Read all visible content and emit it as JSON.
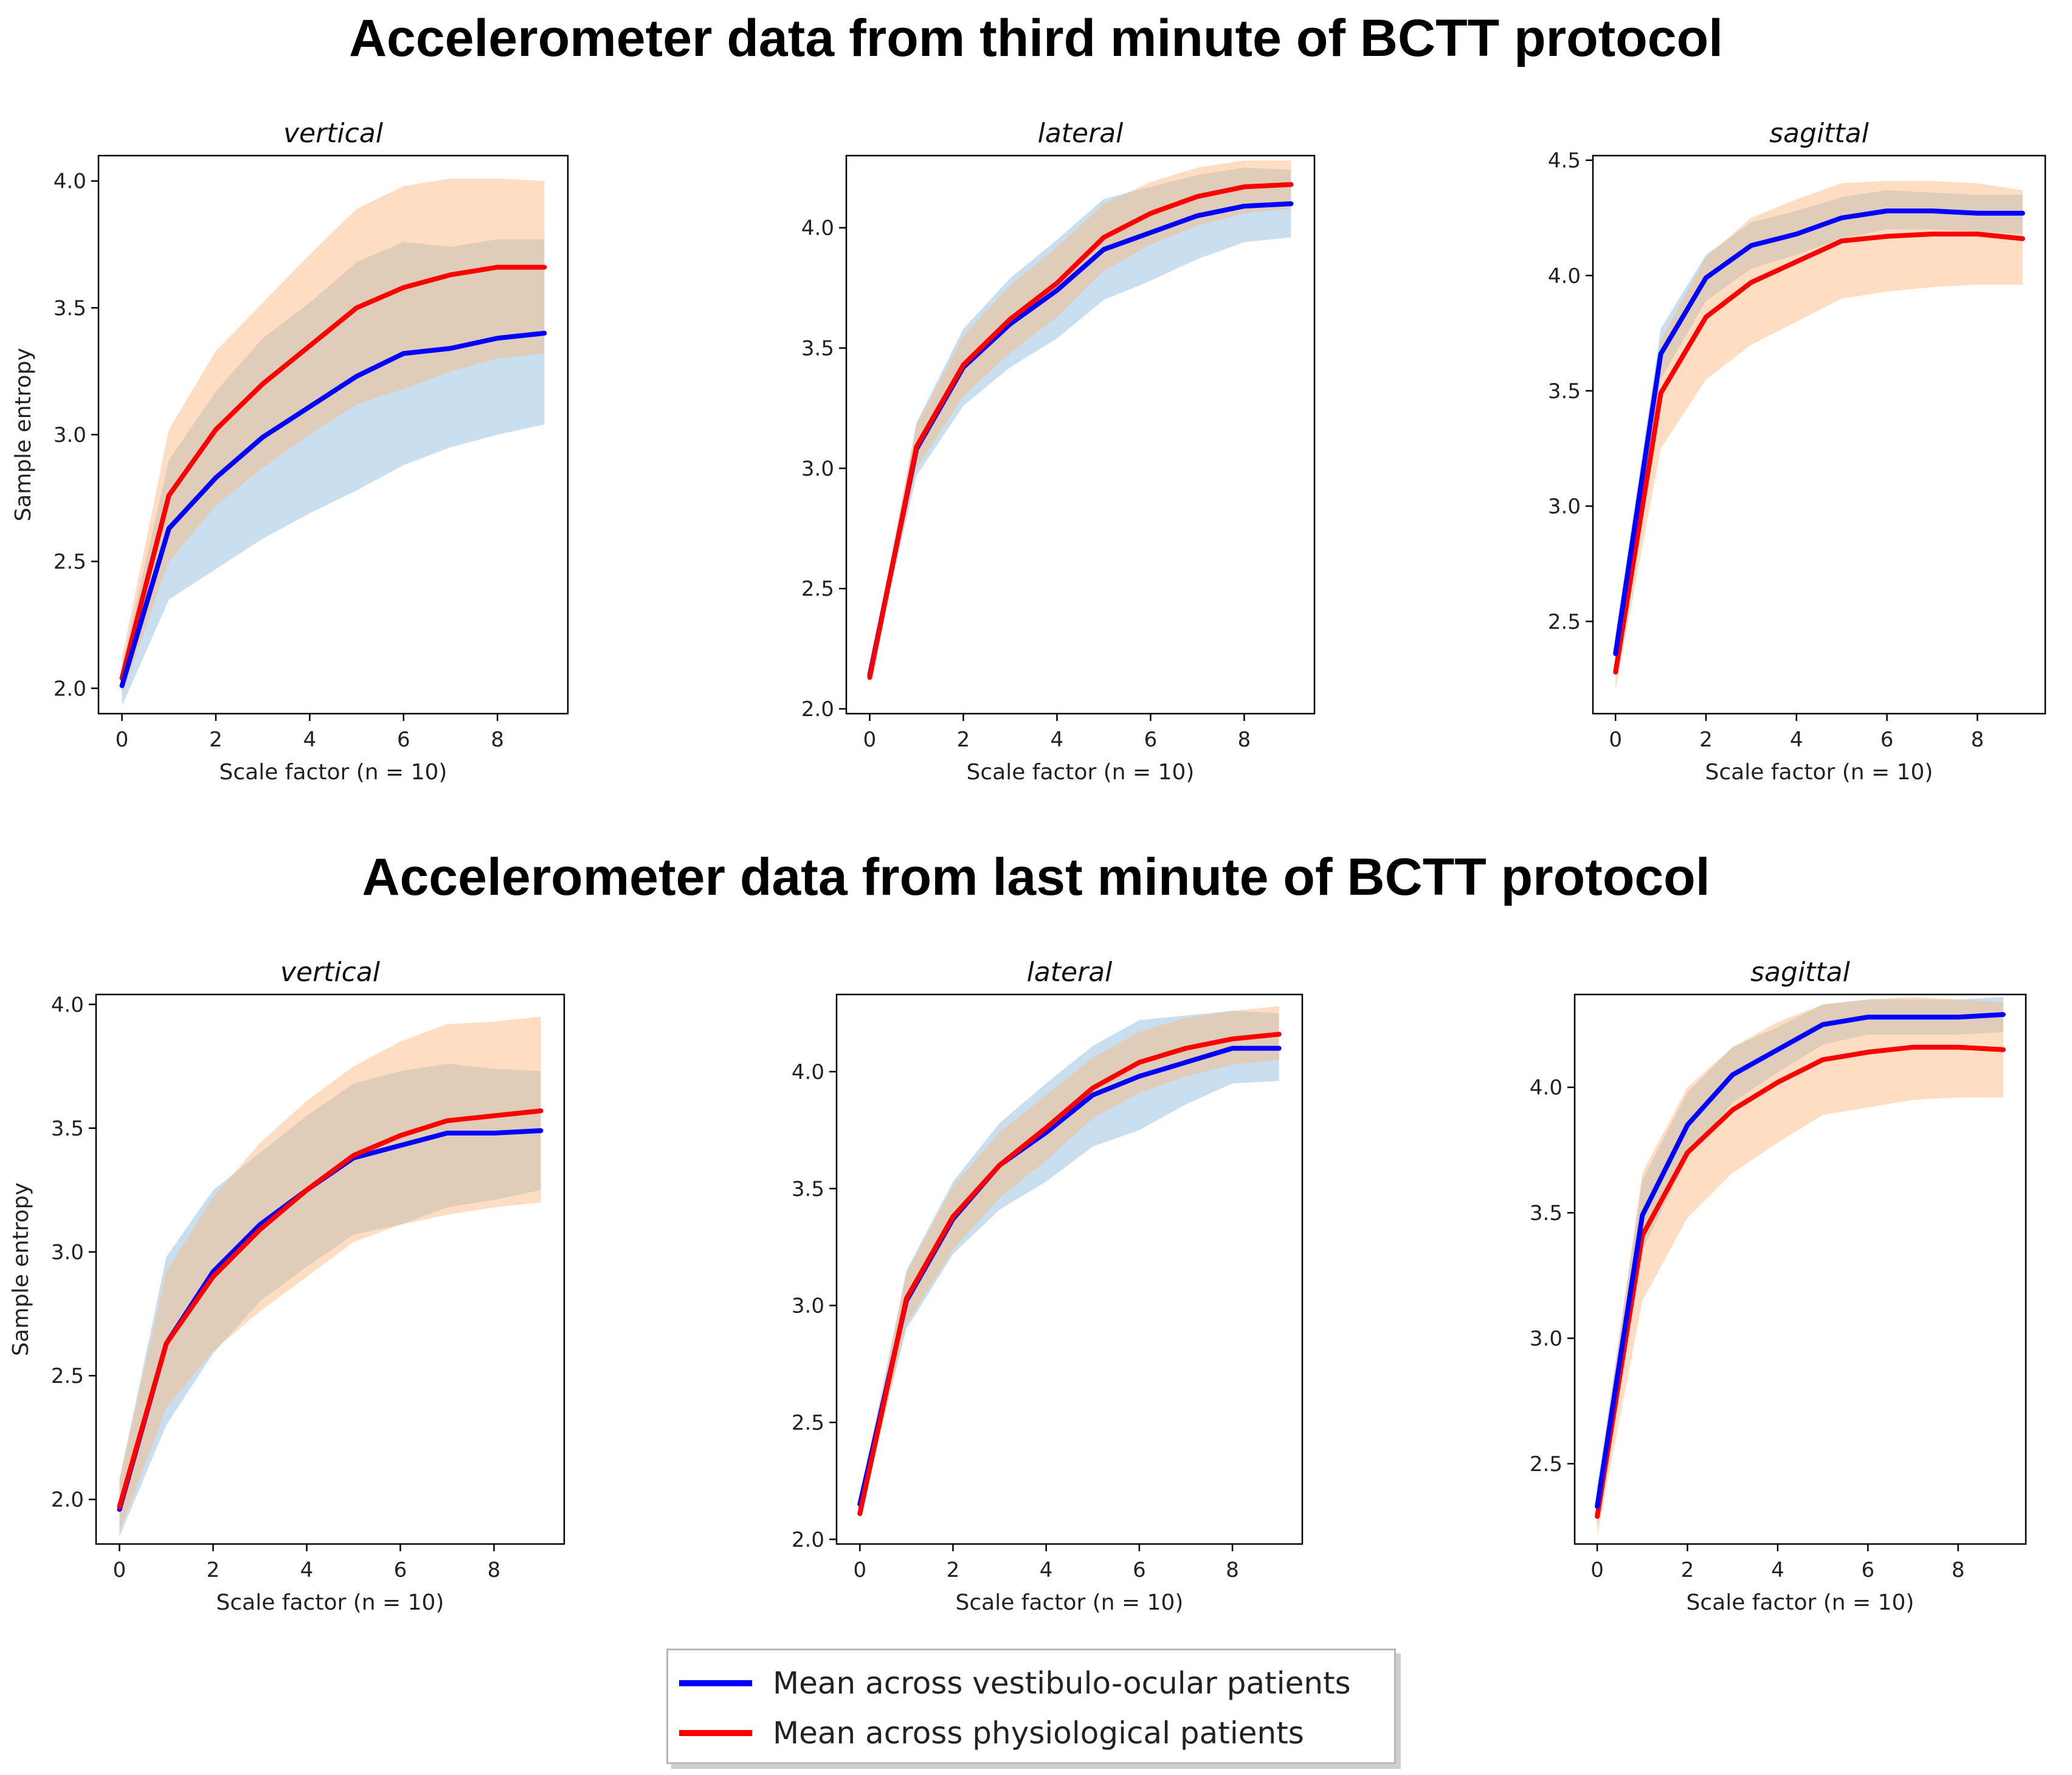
{
  "headings": {
    "top": "Accelerometer data from third minute of BCTT protocol",
    "bottom": "Accelerometer data from last minute of BCTT protocol"
  },
  "legend": {
    "vo_label": "Mean across vestibulo-ocular patients",
    "phys_label": "Mean across physiological patients"
  },
  "colors": {
    "vo_line": "#0000ff",
    "phys_line": "#ff0000",
    "vo_band": "#bcd6ea",
    "phys_band": "#fdd2ad",
    "overlap_band": "#d8c9b8"
  },
  "chart_data": [
    {
      "type": "line",
      "section": "third minute",
      "title": "vertical",
      "xlabel": "Scale factor (n = 10)",
      "ylabel": "Sample entropy",
      "xlim": [
        -0.5,
        9.5
      ],
      "ylim": [
        1.9,
        4.1
      ],
      "xticks": [
        0,
        2,
        4,
        6,
        8
      ],
      "yticks": [
        2.0,
        2.5,
        3.0,
        3.5,
        4.0
      ],
      "x": [
        0,
        1,
        2,
        3,
        4,
        5,
        6,
        7,
        8,
        9
      ],
      "series": [
        {
          "name": "Mean across vestibulo-ocular patients",
          "values": [
            2.01,
            2.63,
            2.83,
            2.99,
            3.11,
            3.23,
            3.32,
            3.34,
            3.38,
            3.4
          ],
          "lower": [
            1.93,
            2.35,
            2.47,
            2.59,
            2.69,
            2.78,
            2.88,
            2.95,
            3.0,
            3.04
          ],
          "upper": [
            2.09,
            2.9,
            3.17,
            3.38,
            3.52,
            3.68,
            3.76,
            3.74,
            3.77,
            3.77
          ]
        },
        {
          "name": "Mean across physiological patients",
          "values": [
            2.04,
            2.76,
            3.02,
            3.2,
            3.35,
            3.5,
            3.58,
            3.63,
            3.66,
            3.66
          ],
          "lower": [
            1.97,
            2.5,
            2.72,
            2.87,
            3.0,
            3.12,
            3.18,
            3.25,
            3.3,
            3.32
          ],
          "upper": [
            2.12,
            3.02,
            3.33,
            3.52,
            3.71,
            3.89,
            3.98,
            4.01,
            4.01,
            4.0
          ]
        }
      ]
    },
    {
      "type": "line",
      "section": "third minute",
      "title": "lateral",
      "xlabel": "Scale factor (n = 10)",
      "ylabel": "",
      "xlim": [
        -0.5,
        9.5
      ],
      "ylim": [
        1.98,
        4.3
      ],
      "xticks": [
        0,
        2,
        4,
        6,
        8
      ],
      "yticks": [
        2.0,
        2.5,
        3.0,
        3.5,
        4.0
      ],
      "x": [
        0,
        1,
        2,
        3,
        4,
        5,
        6,
        7,
        8,
        9
      ],
      "series": [
        {
          "name": "Mean across vestibulo-ocular patients",
          "values": [
            2.14,
            3.08,
            3.42,
            3.6,
            3.74,
            3.91,
            3.98,
            4.05,
            4.09,
            4.1
          ],
          "lower": [
            2.12,
            2.97,
            3.26,
            3.42,
            3.54,
            3.7,
            3.78,
            3.87,
            3.94,
            3.96
          ],
          "upper": [
            2.16,
            3.19,
            3.58,
            3.79,
            3.95,
            4.12,
            4.17,
            4.22,
            4.25,
            4.24
          ]
        },
        {
          "name": "Mean across physiological patients",
          "values": [
            2.13,
            3.09,
            3.43,
            3.62,
            3.77,
            3.96,
            4.06,
            4.13,
            4.17,
            4.18
          ],
          "lower": [
            2.11,
            3.0,
            3.3,
            3.48,
            3.63,
            3.82,
            3.93,
            4.01,
            4.06,
            4.08
          ],
          "upper": [
            2.15,
            3.18,
            3.55,
            3.76,
            3.92,
            4.1,
            4.19,
            4.25,
            4.28,
            4.28
          ]
        }
      ]
    },
    {
      "type": "line",
      "section": "third minute",
      "title": "sagittal",
      "xlabel": "Scale factor (n = 10)",
      "ylabel": "",
      "xlim": [
        -0.5,
        9.5
      ],
      "ylim": [
        2.1,
        4.52
      ],
      "xticks": [
        0,
        2,
        4,
        6,
        8
      ],
      "yticks": [
        2.5,
        3.0,
        3.5,
        4.0,
        4.5
      ],
      "x": [
        0,
        1,
        2,
        3,
        4,
        5,
        6,
        7,
        8,
        9
      ],
      "series": [
        {
          "name": "Mean across vestibulo-ocular patients",
          "values": [
            2.36,
            3.66,
            3.99,
            4.13,
            4.18,
            4.25,
            4.28,
            4.28,
            4.27,
            4.27
          ],
          "lower": [
            2.28,
            3.55,
            3.89,
            4.03,
            4.09,
            4.16,
            4.2,
            4.2,
            4.19,
            4.18
          ],
          "upper": [
            2.44,
            3.77,
            4.09,
            4.23,
            4.28,
            4.34,
            4.37,
            4.36,
            4.35,
            4.35
          ]
        },
        {
          "name": "Mean across physiological patients",
          "values": [
            2.28,
            3.49,
            3.82,
            3.97,
            4.06,
            4.15,
            4.17,
            4.18,
            4.18,
            4.16
          ],
          "lower": [
            2.2,
            3.25,
            3.55,
            3.7,
            3.8,
            3.9,
            3.93,
            3.95,
            3.96,
            3.96
          ],
          "upper": [
            2.36,
            3.72,
            4.08,
            4.25,
            4.33,
            4.4,
            4.41,
            4.41,
            4.4,
            4.37
          ]
        }
      ]
    },
    {
      "type": "line",
      "section": "last minute",
      "title": "vertical",
      "xlabel": "Scale factor (n = 10)",
      "ylabel": "Sample entropy",
      "xlim": [
        -0.5,
        9.5
      ],
      "ylim": [
        1.82,
        4.04
      ],
      "xticks": [
        0,
        2,
        4,
        6,
        8
      ],
      "yticks": [
        2.0,
        2.5,
        3.0,
        3.5,
        4.0
      ],
      "x": [
        0,
        1,
        2,
        3,
        4,
        5,
        6,
        7,
        8,
        9
      ],
      "series": [
        {
          "name": "Mean across vestibulo-ocular patients",
          "values": [
            1.96,
            2.63,
            2.92,
            3.11,
            3.25,
            3.38,
            3.43,
            3.48,
            3.48,
            3.49
          ],
          "lower": [
            1.85,
            2.3,
            2.59,
            2.8,
            2.94,
            3.07,
            3.11,
            3.18,
            3.21,
            3.25
          ],
          "upper": [
            2.08,
            2.98,
            3.25,
            3.4,
            3.55,
            3.68,
            3.73,
            3.76,
            3.74,
            3.73
          ]
        },
        {
          "name": "Mean across physiological patients",
          "values": [
            1.97,
            2.63,
            2.9,
            3.09,
            3.25,
            3.39,
            3.47,
            3.53,
            3.55,
            3.57
          ],
          "lower": [
            1.87,
            2.37,
            2.6,
            2.76,
            2.9,
            3.04,
            3.11,
            3.15,
            3.18,
            3.2
          ],
          "upper": [
            2.08,
            2.92,
            3.22,
            3.44,
            3.61,
            3.75,
            3.85,
            3.92,
            3.93,
            3.95
          ]
        }
      ]
    },
    {
      "type": "line",
      "section": "last minute",
      "title": "lateral",
      "xlabel": "Scale factor (n = 10)",
      "ylabel": "",
      "xlim": [
        -0.5,
        9.5
      ],
      "ylim": [
        1.98,
        4.33
      ],
      "xticks": [
        0,
        2,
        4,
        6,
        8
      ],
      "yticks": [
        2.0,
        2.5,
        3.0,
        3.5,
        4.0
      ],
      "x": [
        0,
        1,
        2,
        3,
        4,
        5,
        6,
        7,
        8,
        9
      ],
      "series": [
        {
          "name": "Mean across vestibulo-ocular patients",
          "values": [
            2.15,
            3.02,
            3.37,
            3.6,
            3.74,
            3.9,
            3.98,
            4.04,
            4.1,
            4.1
          ],
          "lower": [
            2.12,
            2.9,
            3.22,
            3.41,
            3.53,
            3.68,
            3.75,
            3.86,
            3.95,
            3.96
          ],
          "upper": [
            2.18,
            3.15,
            3.53,
            3.78,
            3.95,
            4.11,
            4.22,
            4.24,
            4.26,
            4.25
          ]
        },
        {
          "name": "Mean across physiological patients",
          "values": [
            2.11,
            3.03,
            3.38,
            3.6,
            3.76,
            3.93,
            4.04,
            4.1,
            4.14,
            4.16
          ],
          "lower": [
            2.08,
            2.92,
            3.24,
            3.46,
            3.62,
            3.8,
            3.91,
            3.98,
            4.03,
            4.05
          ],
          "upper": [
            2.14,
            3.14,
            3.51,
            3.74,
            3.9,
            4.06,
            4.17,
            4.23,
            4.26,
            4.28
          ]
        }
      ]
    },
    {
      "type": "line",
      "section": "last minute",
      "title": "sagittal",
      "xlabel": "Scale factor (n = 10)",
      "ylabel": "",
      "xlim": [
        -0.5,
        9.5
      ],
      "ylim": [
        2.18,
        4.37
      ],
      "xticks": [
        0,
        2,
        4,
        6,
        8
      ],
      "yticks": [
        2.5,
        3.0,
        3.5,
        4.0
      ],
      "x": [
        0,
        1,
        2,
        3,
        4,
        5,
        6,
        7,
        8,
        9
      ],
      "series": [
        {
          "name": "Mean across vestibulo-ocular patients",
          "values": [
            2.33,
            3.49,
            3.85,
            4.05,
            4.15,
            4.25,
            4.28,
            4.28,
            4.28,
            4.29
          ],
          "lower": [
            2.25,
            3.35,
            3.72,
            3.94,
            4.06,
            4.17,
            4.21,
            4.21,
            4.21,
            4.22
          ],
          "upper": [
            2.41,
            3.63,
            3.98,
            4.16,
            4.24,
            4.33,
            4.35,
            4.35,
            4.35,
            4.36
          ]
        },
        {
          "name": "Mean across physiological patients",
          "values": [
            2.29,
            3.41,
            3.74,
            3.91,
            4.02,
            4.11,
            4.14,
            4.16,
            4.16,
            4.15
          ],
          "lower": [
            2.21,
            3.15,
            3.48,
            3.66,
            3.78,
            3.89,
            3.92,
            3.95,
            3.96,
            3.96
          ],
          "upper": [
            2.38,
            3.66,
            4.0,
            4.16,
            4.26,
            4.33,
            4.35,
            4.36,
            4.35,
            4.34
          ]
        }
      ]
    }
  ]
}
